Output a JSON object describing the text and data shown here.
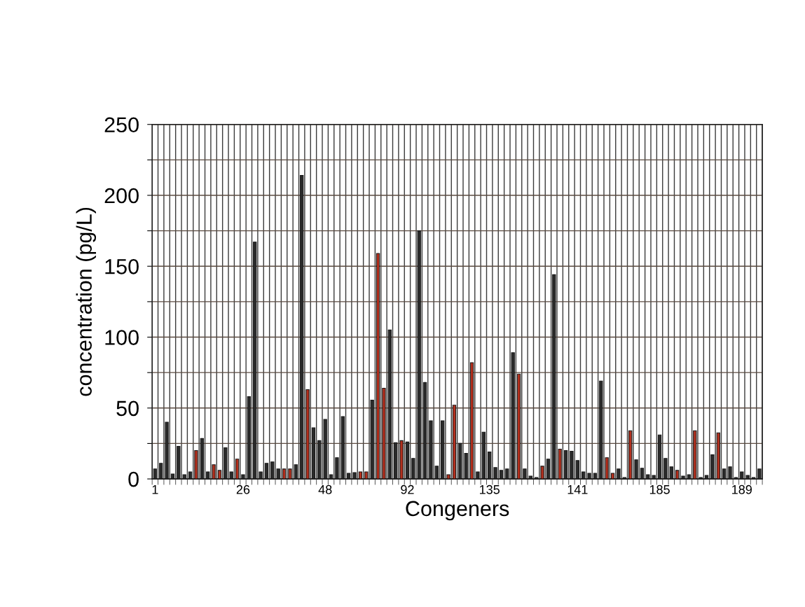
{
  "chart_data": {
    "type": "bar",
    "xlabel": "Congeners",
    "ylabel": "concentration (pg/L)",
    "categories": [
      "1",
      null,
      null,
      null,
      null,
      null,
      null,
      null,
      null,
      null,
      null,
      null,
      null,
      null,
      null,
      "26",
      null,
      null,
      null,
      null,
      null,
      null,
      null,
      null,
      null,
      null,
      null,
      null,
      null,
      "48",
      null,
      null,
      null,
      null,
      null,
      null,
      null,
      null,
      null,
      null,
      null,
      null,
      null,
      "92",
      null,
      null,
      null,
      null,
      null,
      null,
      null,
      null,
      null,
      null,
      null,
      null,
      null,
      "135",
      null,
      null,
      null,
      null,
      null,
      null,
      null,
      null,
      null,
      null,
      null,
      null,
      null,
      null,
      "141",
      null,
      null,
      null,
      null,
      null,
      null,
      null,
      null,
      null,
      null,
      null,
      null,
      null,
      "185",
      null,
      null,
      null,
      null,
      null,
      null,
      null,
      null,
      null,
      null,
      null,
      null,
      null,
      "189",
      null,
      null,
      null
    ],
    "values": [
      7,
      11,
      40,
      3.5,
      23,
      3,
      5,
      20,
      28.5,
      5,
      10,
      6,
      22,
      5,
      14,
      3,
      58,
      167,
      5,
      11,
      12,
      7,
      7,
      7,
      10,
      214,
      63,
      36,
      27,
      42,
      3,
      15,
      44,
      4,
      4.5,
      5,
      5,
      55.5,
      159,
      64,
      105,
      25.5,
      27,
      26,
      14.5,
      175,
      68,
      41,
      9,
      41,
      3,
      52,
      25,
      18,
      82,
      5,
      33,
      19,
      8,
      6,
      7,
      89,
      74,
      7,
      2,
      1,
      9,
      14,
      144,
      21,
      20,
      19.5,
      13,
      5,
      4,
      4,
      69,
      15,
      4,
      7,
      1,
      34,
      13.5,
      7.5,
      3,
      2.5,
      31,
      14.5,
      8.5,
      6,
      2,
      3,
      34,
      1,
      2.5,
      17,
      32.5,
      7,
      8.5,
      1,
      5,
      2.5,
      1,
      7
    ],
    "colors": [
      "#2b2b2b",
      "#2b2b2b",
      "#2b2b2b",
      "#2b2b2b",
      "#2b2b2b",
      "#2b2b2b",
      "#2b2b2b",
      "#b3301e",
      "#2b2b2b",
      "#2b2b2b",
      "#b3301e",
      "#b3301e",
      "#2b2b2b",
      "#2b2b2b",
      "#b3301e",
      "#2b2b2b",
      "#2b2b2b",
      "#2b2b2b",
      "#2b2b2b",
      "#2b2b2b",
      "#2b2b2b",
      "#2b2b2b",
      "#b3301e",
      "#b3301e",
      "#2b2b2b",
      "#2b2b2b",
      "#b3301e",
      "#2b2b2b",
      "#2b2b2b",
      "#2b2b2b",
      "#2b2b2b",
      "#2b2b2b",
      "#2b2b2b",
      "#2b2b2b",
      "#2b2b2b",
      "#b3301e",
      "#b3301e",
      "#2b2b2b",
      "#b3301e",
      "#b3301e",
      "#2b2b2b",
      "#2b2b2b",
      "#b3301e",
      "#2b2b2b",
      "#2b2b2b",
      "#2b2b2b",
      "#2b2b2b",
      "#2b2b2b",
      "#2b2b2b",
      "#2b2b2b",
      "#b3301e",
      "#b3301e",
      "#2b2b2b",
      "#2b2b2b",
      "#b3301e",
      "#2b2b2b",
      "#2b2b2b",
      "#2b2b2b",
      "#2b2b2b",
      "#2b2b2b",
      "#2b2b2b",
      "#2b2b2b",
      "#b3301e",
      "#2b2b2b",
      "#2b2b2b",
      "#2b2b2b",
      "#b3301e",
      "#2b2b2b",
      "#2b2b2b",
      "#b3301e",
      "#2b2b2b",
      "#2b2b2b",
      "#2b2b2b",
      "#2b2b2b",
      "#2b2b2b",
      "#2b2b2b",
      "#2b2b2b",
      "#b3301e",
      "#b3301e",
      "#2b2b2b",
      "#2b2b2b",
      "#b3301e",
      "#2b2b2b",
      "#2b2b2b",
      "#2b2b2b",
      "#2b2b2b",
      "#2b2b2b",
      "#2b2b2b",
      "#2b2b2b",
      "#b3301e",
      "#2b2b2b",
      "#2b2b2b",
      "#b3301e",
      "#2b2b2b",
      "#2b2b2b",
      "#2b2b2b",
      "#b3301e",
      "#2b2b2b",
      "#2b2b2b",
      "#2b2b2b",
      "#2b2b2b",
      "#2b2b2b",
      "#2b2b2b",
      "#2b2b2b"
    ],
    "ylim": [
      0,
      250
    ],
    "yticks": [
      0,
      {
        "value": 25,
        "label": null
      },
      50,
      {
        "value": 75,
        "label": null
      },
      100,
      {
        "value": 125,
        "label": null
      },
      150,
      {
        "value": 175,
        "label": null
      },
      200,
      {
        "value": 225,
        "label": null
      },
      250
    ],
    "grid": true
  }
}
